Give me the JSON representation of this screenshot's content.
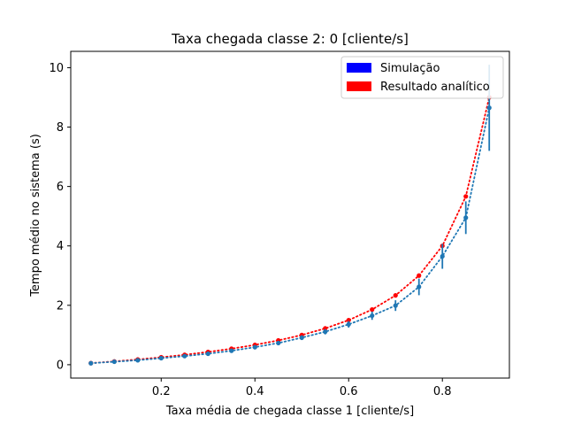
{
  "chart_data": {
    "type": "line",
    "title": "Taxa chegada classe 2: 0 [cliente/s]",
    "xlabel": "Taxa média de chegada classe 1 [cliente/s]",
    "ylabel": "Tempo médio no sistema (s)",
    "xlim": [
      0.007,
      0.943
    ],
    "ylim": [
      -0.45,
      10.55
    ],
    "xticks": [
      0.2,
      0.4,
      0.6,
      0.8
    ],
    "yticks": [
      0,
      2,
      4,
      6,
      8,
      10
    ],
    "xtick_labels": [
      "0.2",
      "0.4",
      "0.6",
      "0.8"
    ],
    "ytick_labels": [
      "0",
      "2",
      "4",
      "6",
      "8",
      "10"
    ],
    "grid": false,
    "legend_position": "top-right",
    "x": [
      0.05,
      0.1,
      0.15,
      0.2,
      0.25,
      0.3,
      0.35,
      0.4,
      0.45,
      0.5,
      0.55,
      0.6,
      0.65,
      0.7,
      0.75,
      0.8,
      0.85,
      0.9
    ],
    "series": [
      {
        "name": "Simulação",
        "color": "#1f77b4",
        "legend_color": "#0000ff",
        "values": [
          0.05,
          0.1,
          0.15,
          0.22,
          0.29,
          0.37,
          0.47,
          0.59,
          0.73,
          0.91,
          1.11,
          1.36,
          1.65,
          1.99,
          2.62,
          3.65,
          4.95,
          8.65
        ],
        "errors": [
          0.02,
          0.02,
          0.03,
          0.03,
          0.04,
          0.05,
          0.05,
          0.06,
          0.07,
          0.08,
          0.09,
          0.11,
          0.14,
          0.18,
          0.28,
          0.42,
          0.55,
          1.45
        ]
      },
      {
        "name": "Resultado analítico",
        "color": "#ff0000",
        "legend_color": "#ff0000",
        "values": [
          0.053,
          0.111,
          0.176,
          0.25,
          0.333,
          0.429,
          0.538,
          0.667,
          0.818,
          1.0,
          1.222,
          1.5,
          1.857,
          2.333,
          3.0,
          4.0,
          5.667,
          9.0
        ]
      }
    ]
  }
}
